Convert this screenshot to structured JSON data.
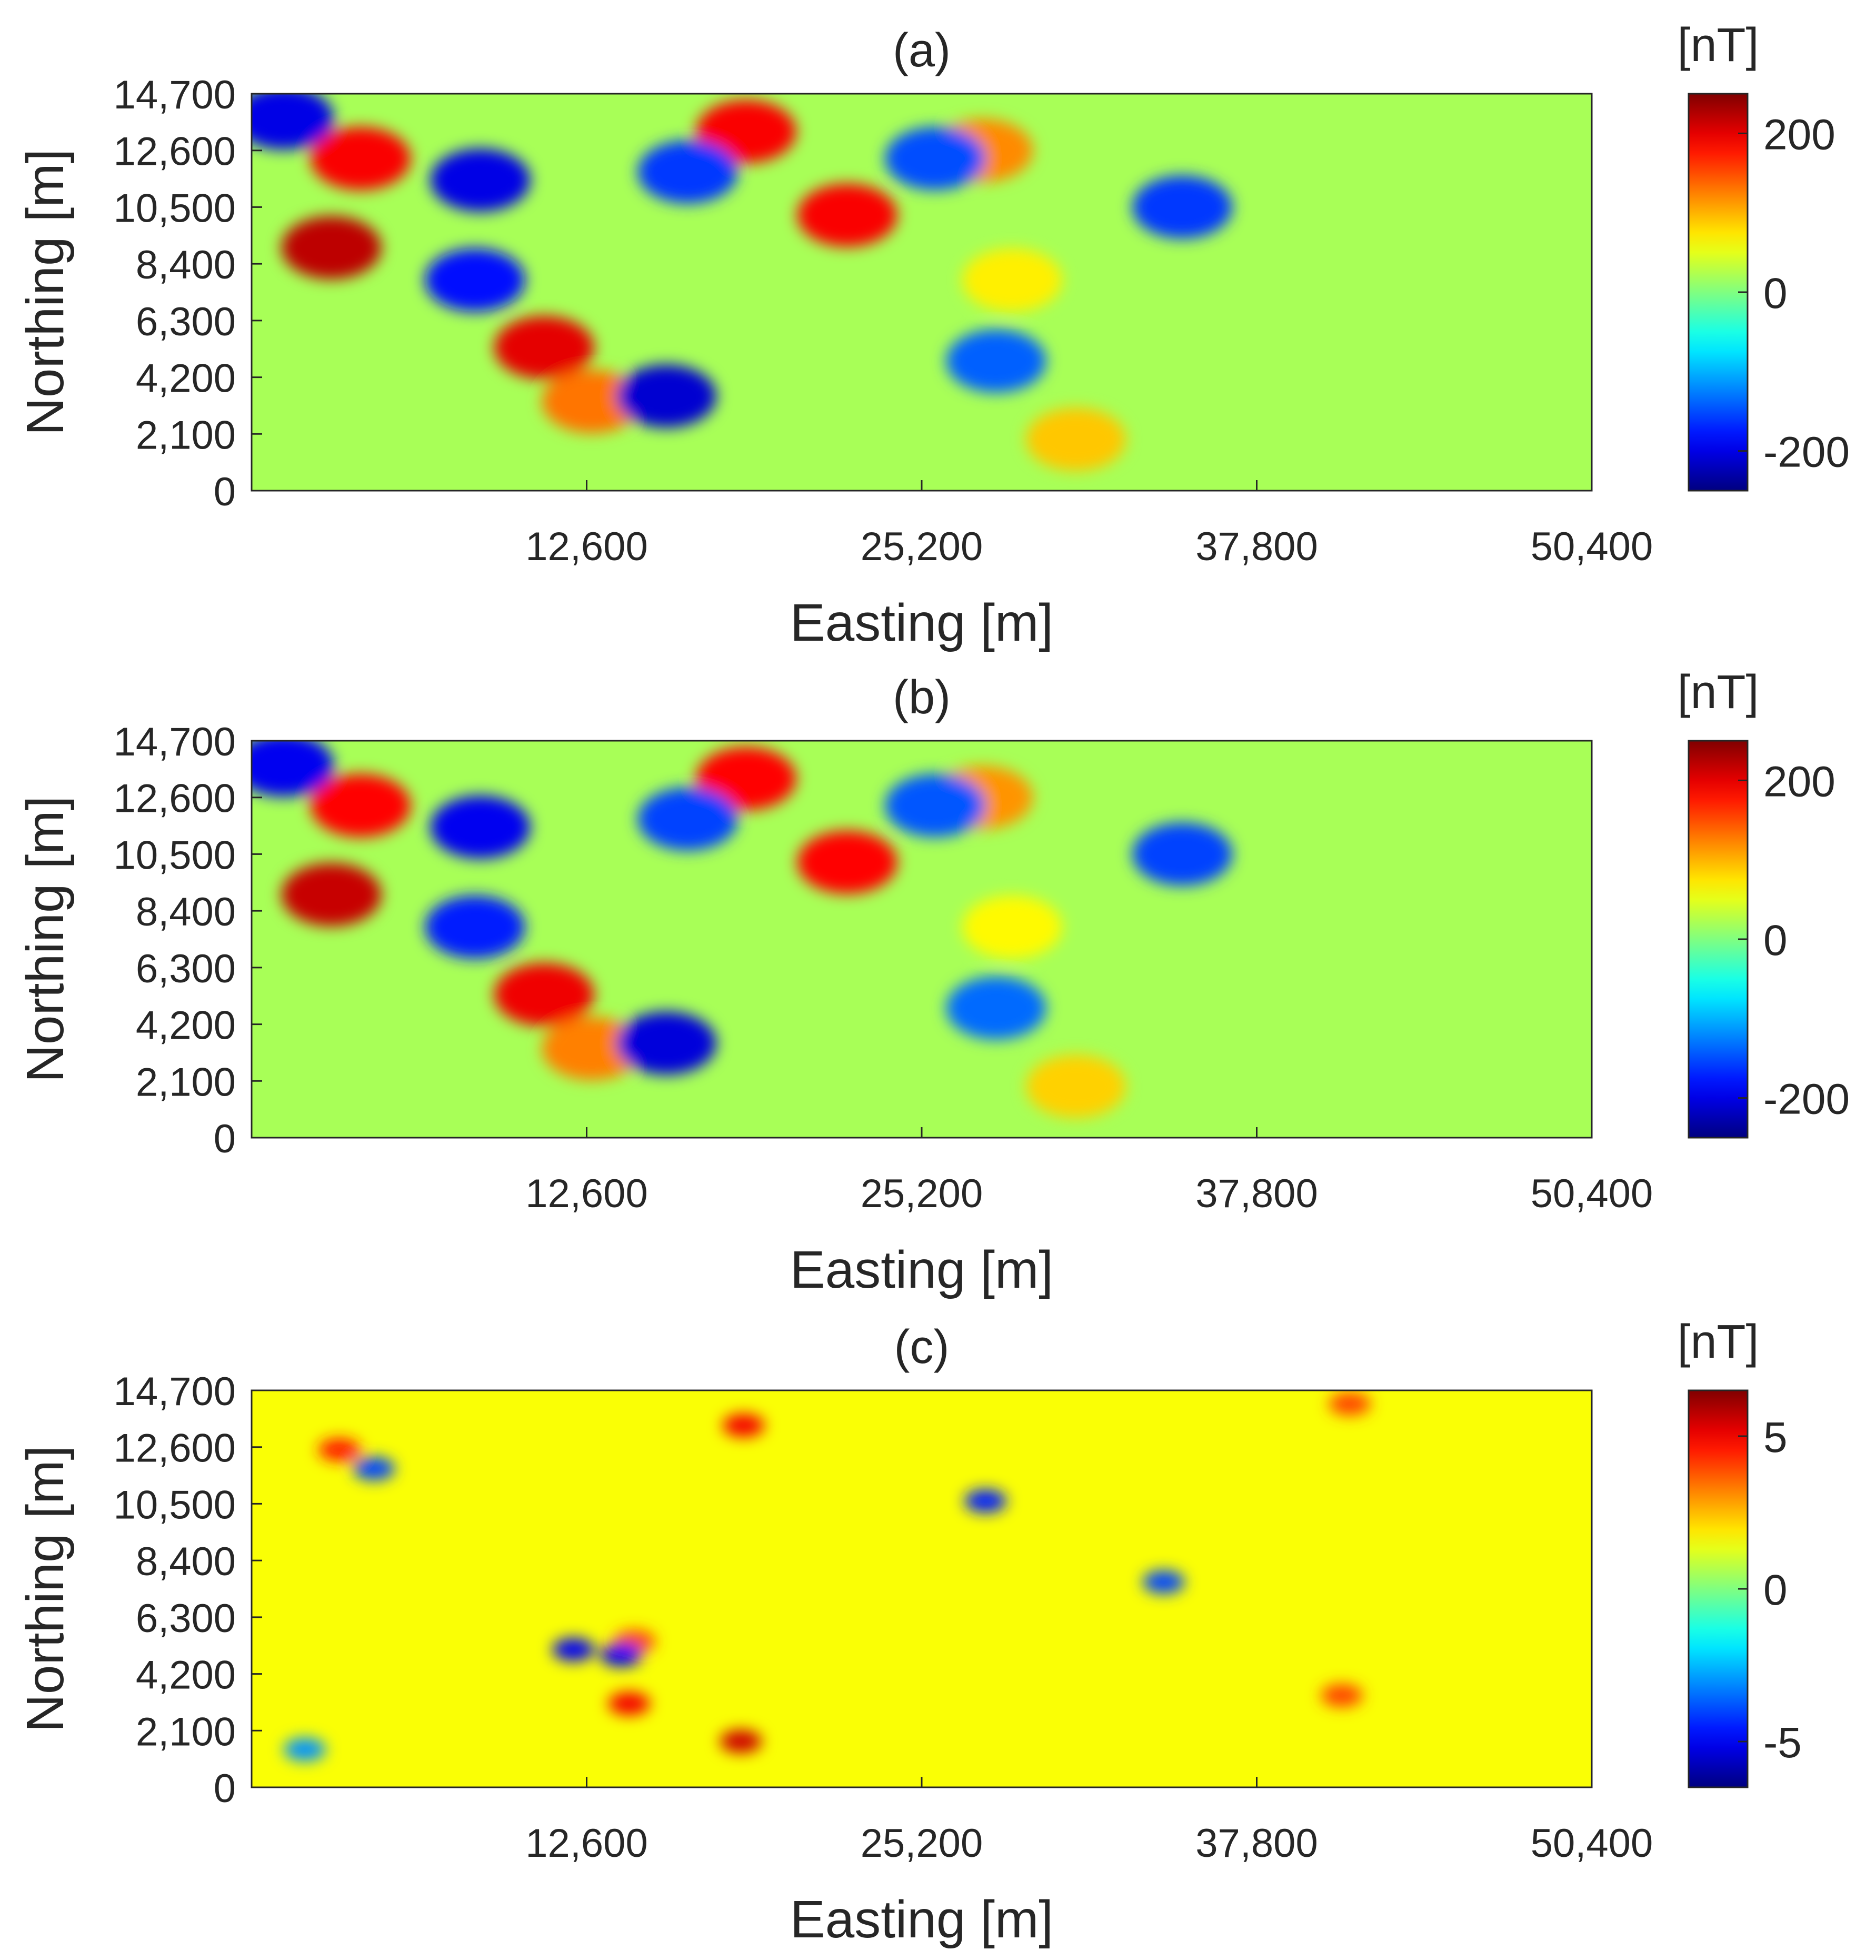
{
  "chart_data": [
    {
      "type": "heatmap",
      "title": "(a)",
      "xlabel": "Easting [m]",
      "ylabel": "Northing [m]",
      "xlim": [
        0,
        50400
      ],
      "ylim": [
        0,
        14700
      ],
      "xticks": [
        12600,
        25200,
        37800,
        50400
      ],
      "xtick_labels": [
        "12,600",
        "25,200",
        "37,800",
        "50,400"
      ],
      "yticks": [
        0,
        2100,
        4200,
        6300,
        8400,
        10500,
        12600,
        14700
      ],
      "ytick_labels": [
        "0",
        "2,100",
        "4,200",
        "6,300",
        "8,400",
        "10,500",
        "12,600",
        "14,700"
      ],
      "colorbar": {
        "label": "[nT]",
        "range": [
          -250,
          250
        ],
        "ticks": [
          -200,
          0,
          200
        ],
        "tick_labels": [
          "-200",
          "0",
          "200"
        ],
        "colormap": "jet"
      },
      "features": [
        {
          "x": 3000,
          "y": 9000,
          "value": 220
        },
        {
          "x": 4100,
          "y": 12300,
          "value": 190
        },
        {
          "x": 11000,
          "y": 5300,
          "value": 200
        },
        {
          "x": 12800,
          "y": 3300,
          "value": 130
        },
        {
          "x": 18600,
          "y": 13300,
          "value": 190
        },
        {
          "x": 22400,
          "y": 10200,
          "value": 190
        },
        {
          "x": 27500,
          "y": 12600,
          "value": 120
        },
        {
          "x": 28600,
          "y": 7800,
          "value": 70
        },
        {
          "x": 31000,
          "y": 1900,
          "value": 90
        },
        {
          "x": 1200,
          "y": 13800,
          "value": -200
        },
        {
          "x": 8600,
          "y": 11500,
          "value": -200
        },
        {
          "x": 8400,
          "y": 7800,
          "value": -180
        },
        {
          "x": 15600,
          "y": 3500,
          "value": -210
        },
        {
          "x": 16400,
          "y": 11800,
          "value": -160
        },
        {
          "x": 25700,
          "y": 12300,
          "value": -150
        },
        {
          "x": 35000,
          "y": 10500,
          "value": -160
        },
        {
          "x": 28000,
          "y": 4800,
          "value": -140
        }
      ]
    },
    {
      "type": "heatmap",
      "title": "(b)",
      "xlabel": "Easting [m]",
      "ylabel": "Northing [m]",
      "xlim": [
        0,
        50400
      ],
      "ylim": [
        0,
        14700
      ],
      "xticks": [
        12600,
        25200,
        37800,
        50400
      ],
      "xtick_labels": [
        "12,600",
        "25,200",
        "37,800",
        "50,400"
      ],
      "yticks": [
        0,
        2100,
        4200,
        6300,
        8400,
        10500,
        12600,
        14700
      ],
      "ytick_labels": [
        "0",
        "2,100",
        "4,200",
        "6,300",
        "8,400",
        "10,500",
        "12,600",
        "14,700"
      ],
      "colorbar": {
        "label": "[nT]",
        "range": [
          -250,
          250
        ],
        "ticks": [
          -200,
          0,
          200
        ],
        "tick_labels": [
          "-200",
          "0",
          "200"
        ],
        "colormap": "jet"
      },
      "features": [
        {
          "x": 3000,
          "y": 9000,
          "value": 215
        },
        {
          "x": 4100,
          "y": 12300,
          "value": 185
        },
        {
          "x": 11000,
          "y": 5300,
          "value": 195
        },
        {
          "x": 12800,
          "y": 3300,
          "value": 125
        },
        {
          "x": 18600,
          "y": 13300,
          "value": 185
        },
        {
          "x": 22400,
          "y": 10200,
          "value": 185
        },
        {
          "x": 27500,
          "y": 12600,
          "value": 115
        },
        {
          "x": 28600,
          "y": 7800,
          "value": 65
        },
        {
          "x": 31000,
          "y": 1900,
          "value": 85
        },
        {
          "x": 1200,
          "y": 13800,
          "value": -195
        },
        {
          "x": 8600,
          "y": 11500,
          "value": -195
        },
        {
          "x": 8400,
          "y": 7800,
          "value": -175
        },
        {
          "x": 15600,
          "y": 3500,
          "value": -205
        },
        {
          "x": 16400,
          "y": 11800,
          "value": -155
        },
        {
          "x": 25700,
          "y": 12300,
          "value": -145
        },
        {
          "x": 35000,
          "y": 10500,
          "value": -155
        },
        {
          "x": 28000,
          "y": 4800,
          "value": -135
        }
      ]
    },
    {
      "type": "heatmap",
      "title": "(c)",
      "xlabel": "Easting [m]",
      "ylabel": "Northing [m]",
      "xlim": [
        0,
        50400
      ],
      "ylim": [
        0,
        14700
      ],
      "xticks": [
        12600,
        25200,
        37800,
        50400
      ],
      "xtick_labels": [
        "12,600",
        "25,200",
        "37,800",
        "50,400"
      ],
      "yticks": [
        0,
        2100,
        4200,
        6300,
        8400,
        10500,
        12600,
        14700
      ],
      "ytick_labels": [
        "0",
        "2,100",
        "4,200",
        "6,300",
        "8,400",
        "10,500",
        "12,600",
        "14,700"
      ],
      "colorbar": {
        "label": "[nT]",
        "range": [
          -6.5,
          6.5
        ],
        "ticks": [
          -5,
          0,
          5
        ],
        "tick_labels": [
          "-5",
          "0",
          "5"
        ],
        "colormap": "jet"
      },
      "features": [
        {
          "x": 3300,
          "y": 12500,
          "value": 4.5
        },
        {
          "x": 18500,
          "y": 13400,
          "value": 5
        },
        {
          "x": 14400,
          "y": 5400,
          "value": 4
        },
        {
          "x": 14200,
          "y": 3100,
          "value": 5
        },
        {
          "x": 18400,
          "y": 1700,
          "value": 5.5
        },
        {
          "x": 41300,
          "y": 14200,
          "value": 4
        },
        {
          "x": 41000,
          "y": 3400,
          "value": 4
        },
        {
          "x": 34300,
          "y": 7600,
          "value": -4
        },
        {
          "x": 12100,
          "y": 5100,
          "value": -5
        },
        {
          "x": 13900,
          "y": 4900,
          "value": -5
        },
        {
          "x": 4600,
          "y": 11800,
          "value": -4
        },
        {
          "x": 27600,
          "y": 10600,
          "value": -4.5
        },
        {
          "x": 2000,
          "y": 1400,
          "value": -3
        }
      ]
    }
  ]
}
